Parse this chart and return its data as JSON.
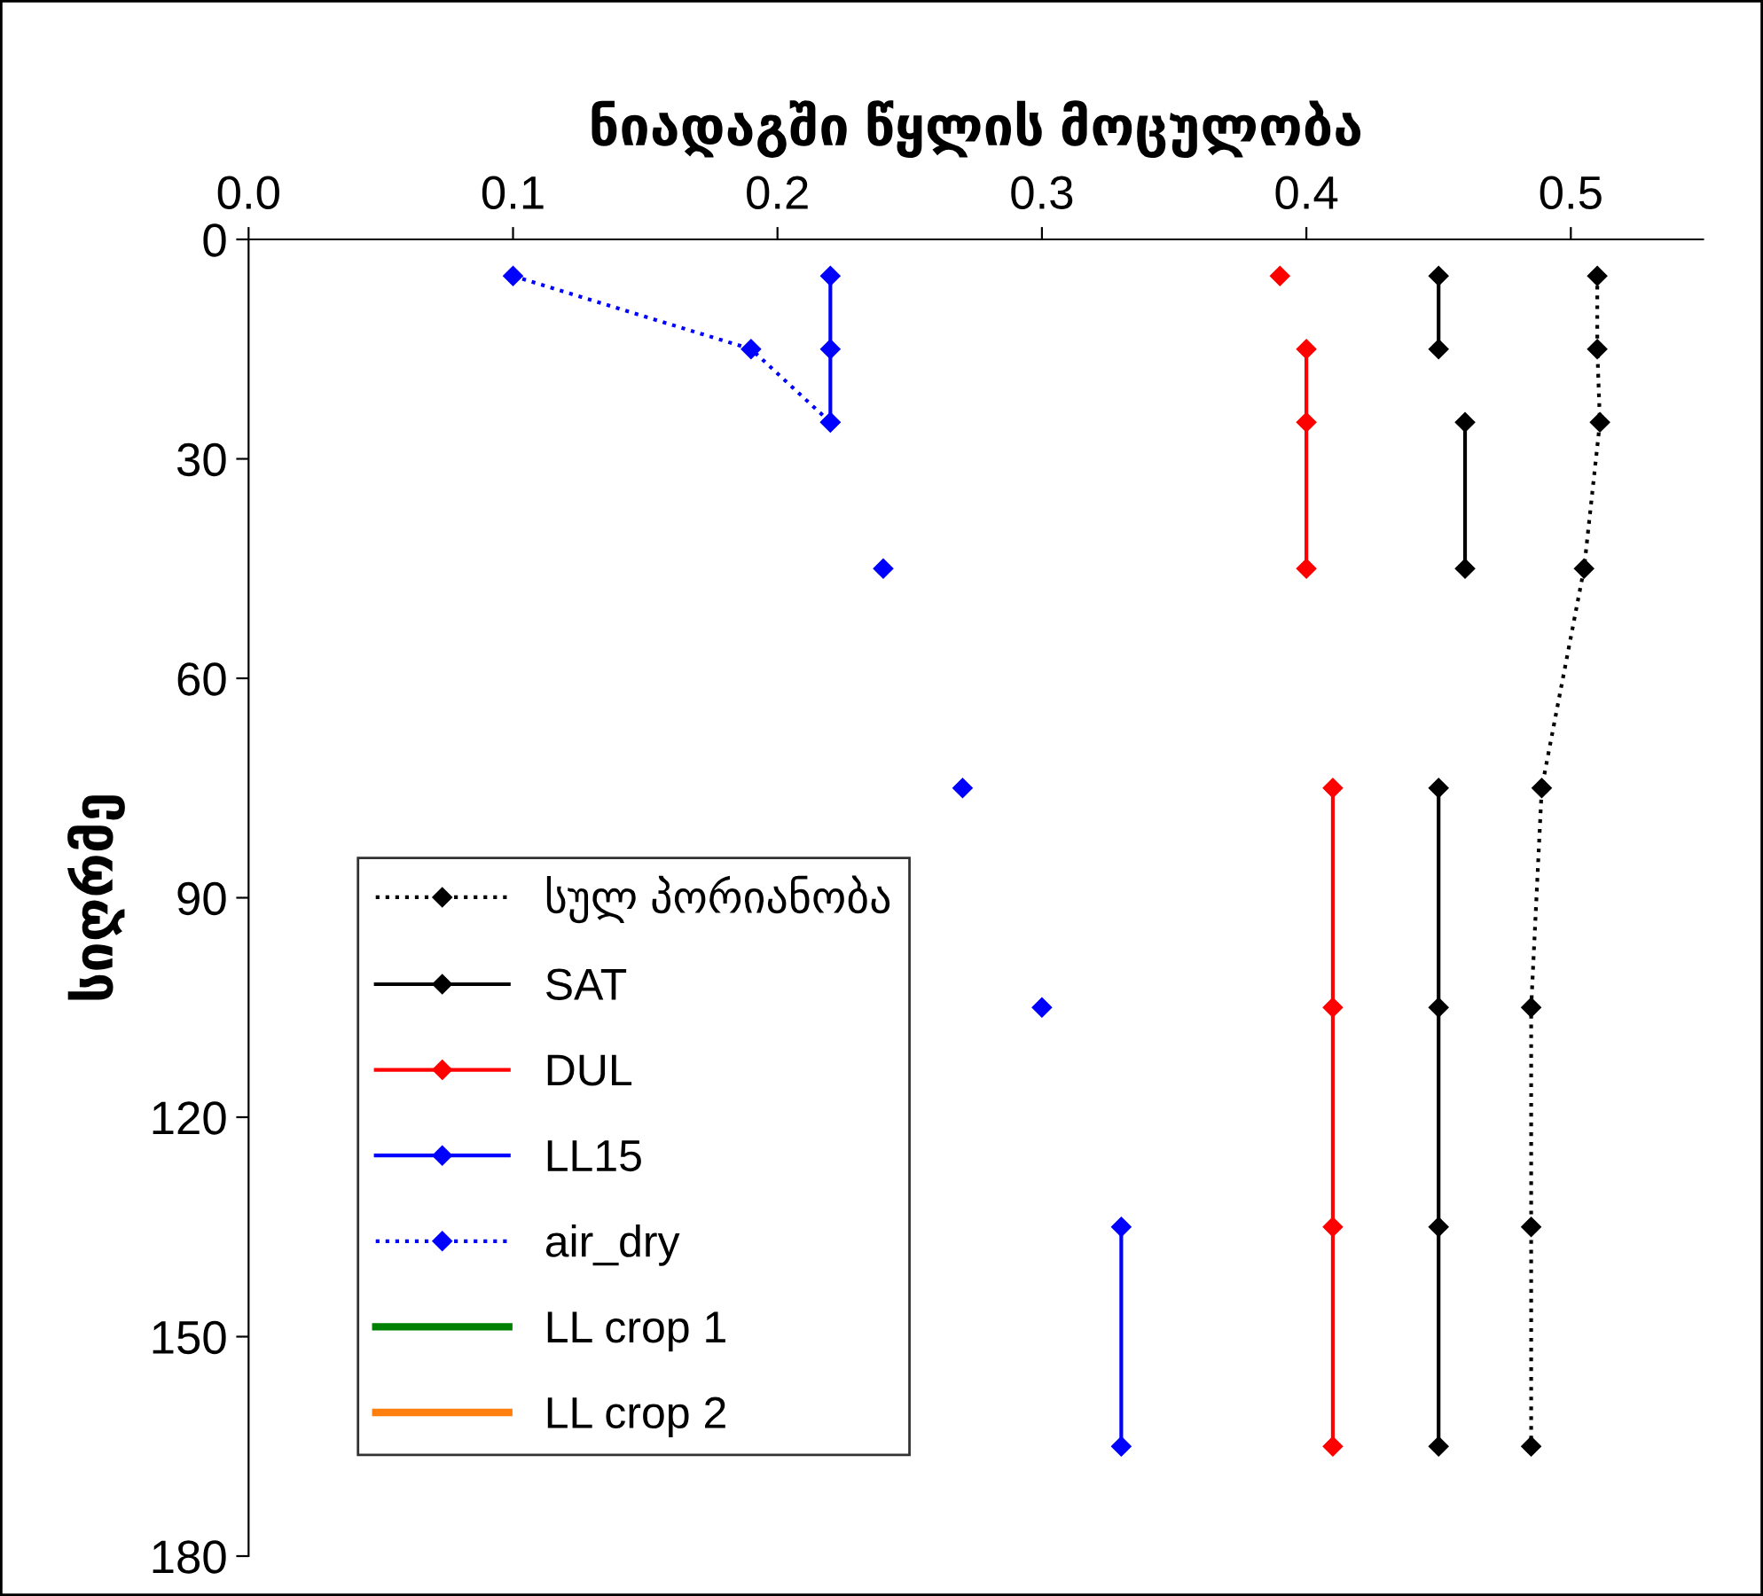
{
  "chart_data": {
    "type": "line",
    "xlabel": "ნიადაგში წყლის მოცულობა",
    "ylabel": "სიღრმე",
    "xlim": [
      0,
      0.55
    ],
    "xticks": [
      {
        "value": 0,
        "label": "0.0"
      },
      0.1,
      0.2,
      0.3,
      0.4,
      0.5
    ],
    "ylim": [
      180,
      0
    ],
    "yticks": [
      0,
      30,
      60,
      90,
      120,
      150,
      180
    ],
    "grid": false,
    "legend": "bottom left",
    "marker": "diamond",
    "series": [
      {
        "name": "სულ პორიანობა",
        "color": "#000000",
        "line_style": "dotted",
        "x": [
          0.51,
          0.51,
          0.511,
          0.505,
          0.489,
          0.485,
          0.485,
          0.485
        ],
        "values": [
          5,
          15,
          25,
          45,
          75,
          105,
          135,
          165
        ]
      },
      {
        "name": "SAT",
        "color": "#000000",
        "line_style": "solid",
        "x": [
          0.45,
          0.45,
          null,
          0.46,
          0.46,
          null,
          0.45,
          0.45,
          0.45,
          0.45
        ],
        "values": [
          5,
          15,
          null,
          25,
          45,
          null,
          75,
          105,
          135,
          165
        ]
      },
      {
        "name": "DUL",
        "color": "#ff0000",
        "line_style": "solid",
        "x": [
          0.39,
          null,
          0.4,
          0.4,
          0.4,
          null,
          0.41,
          0.41,
          0.41,
          0.41
        ],
        "values": [
          5,
          null,
          15,
          25,
          45,
          null,
          75,
          105,
          135,
          165
        ]
      },
      {
        "name": "LL15",
        "color": "#0000ff",
        "line_style": "solid",
        "x": [
          0.22,
          0.22,
          0.22,
          null,
          0.24,
          null,
          0.27,
          null,
          0.3,
          null,
          0.33,
          0.33
        ],
        "values": [
          5,
          15,
          25,
          null,
          45,
          null,
          75,
          null,
          105,
          null,
          135,
          165
        ]
      },
      {
        "name": "air_dry",
        "color": "#0000ff",
        "line_style": "dotted",
        "x": [
          0.1,
          0.19,
          0.22
        ],
        "values": [
          5,
          15,
          25
        ]
      },
      {
        "name": "LL crop 1",
        "color": "#008000",
        "line_style": "solid",
        "marker": "none"
      },
      {
        "name": "LL crop 2",
        "color": "#ff7f0e",
        "line_style": "solid",
        "marker": "none"
      }
    ]
  }
}
